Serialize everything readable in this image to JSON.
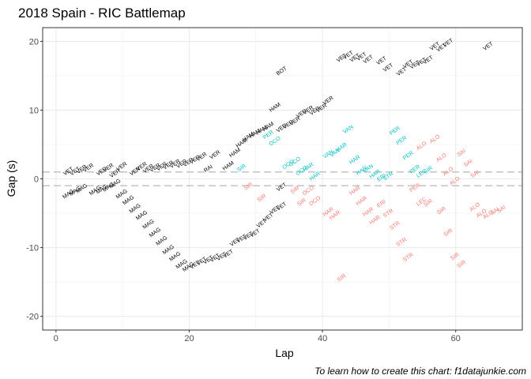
{
  "chart_data": {
    "type": "scatter",
    "title": "2018 Spain - RIC Battlemap",
    "xlabel": "Lap",
    "ylabel": "Gap (s)",
    "xlim": [
      -2,
      70
    ],
    "ylim": [
      -22,
      22
    ],
    "x_ticks": [
      0,
      20,
      40,
      60
    ],
    "y_ticks": [
      -20,
      -10,
      0,
      10,
      20
    ],
    "grid": true,
    "legend": "none",
    "reference_lines": [
      1,
      -1
    ],
    "colors": {
      "ahead": "#000000",
      "behind": "#f8766d",
      "lapped": "#00bfc4",
      "panel_border": "#333333",
      "grid": "#ebebeb",
      "ref": "#bebebe"
    },
    "caption": "To learn how to create this chart: f1datajunkie.com",
    "series": [
      {
        "name": "ahead",
        "points": [
          [
            2,
            0.9,
            "VET"
          ],
          [
            3,
            0.9,
            "VET"
          ],
          [
            4,
            1.2,
            "VER"
          ],
          [
            5,
            1.4,
            "VER"
          ],
          [
            7,
            0.9,
            "VER"
          ],
          [
            8,
            1.4,
            "VER"
          ],
          [
            9,
            0.6,
            "VER"
          ],
          [
            10,
            1.6,
            "VER"
          ],
          [
            12,
            0.9,
            "VER"
          ],
          [
            13,
            1.6,
            "VER"
          ],
          [
            14,
            1.3,
            "VER"
          ],
          [
            15,
            1.4,
            "VER"
          ],
          [
            16,
            1.6,
            "VER"
          ],
          [
            17,
            1.8,
            "VER"
          ],
          [
            18,
            2.0,
            "VER"
          ],
          [
            19,
            2.0,
            "VER"
          ],
          [
            20,
            2.2,
            "VER"
          ],
          [
            21,
            2.6,
            "VER"
          ],
          [
            22,
            3.0,
            "VER"
          ],
          [
            23,
            1.3,
            "RAI"
          ],
          [
            24,
            3.3,
            "VER"
          ],
          [
            26,
            1.7,
            "HAM"
          ],
          [
            27,
            3.6,
            "HAM"
          ],
          [
            28,
            5.0,
            "HAM"
          ],
          [
            29,
            5.9,
            "HAM"
          ],
          [
            30,
            6.4,
            "HAM"
          ],
          [
            31,
            6.9,
            "HAM"
          ],
          [
            32,
            7.4,
            "HAM"
          ],
          [
            33,
            10.2,
            "HAM"
          ],
          [
            34,
            7.2,
            "VER"
          ],
          [
            35,
            7.7,
            "VER"
          ],
          [
            36,
            8.2,
            "VER"
          ],
          [
            37,
            9.3,
            "VER"
          ],
          [
            38,
            9.8,
            "VER"
          ],
          [
            39,
            9.7,
            "VER"
          ],
          [
            40,
            10.1,
            "VER"
          ],
          [
            41,
            11.2,
            "VER"
          ],
          [
            34,
            15.5,
            "BOT"
          ],
          [
            43,
            17.4,
            "VET"
          ],
          [
            44,
            17.8,
            "VET"
          ],
          [
            45,
            17.4,
            "VET"
          ],
          [
            46,
            17.6,
            "VET"
          ],
          [
            47,
            17.2,
            "VET"
          ],
          [
            49,
            17.0,
            "VET"
          ],
          [
            50,
            16.0,
            "VET"
          ],
          [
            52,
            15.4,
            "VET"
          ],
          [
            53,
            16.5,
            "VET"
          ],
          [
            54,
            16.4,
            "VET"
          ],
          [
            55,
            16.8,
            "VET"
          ],
          [
            56,
            17.1,
            "VET"
          ],
          [
            57,
            19.1,
            "VET"
          ],
          [
            58,
            18.9,
            "VET"
          ],
          [
            59,
            19.6,
            "VET"
          ],
          [
            65,
            19.1,
            "VET"
          ],
          [
            34,
            -1.4,
            "VET"
          ],
          [
            2,
            -2.4,
            "MAG"
          ],
          [
            3,
            -2.0,
            "MAG"
          ],
          [
            4,
            -1.6,
            "MAG"
          ],
          [
            6,
            -1.9,
            "MAG"
          ],
          [
            7,
            -1.7,
            "MAG"
          ],
          [
            8,
            -1.4,
            "MAG"
          ],
          [
            9,
            -0.9,
            "MAG"
          ],
          [
            10,
            -2.4,
            "MAG"
          ],
          [
            11,
            -3.3,
            "MAG"
          ],
          [
            12,
            -4.5,
            "MAG"
          ],
          [
            13,
            -5.5,
            "MAG"
          ],
          [
            14,
            -6.8,
            "MAG"
          ],
          [
            15,
            -8.0,
            "MAG"
          ],
          [
            16,
            -9.2,
            "MAG"
          ],
          [
            17,
            -10.5,
            "MAG"
          ],
          [
            18,
            -11.5,
            "MAG"
          ],
          [
            19,
            -12.6,
            "MAG"
          ],
          [
            20,
            -13.0,
            "MAG"
          ],
          [
            21,
            -12.7,
            "VET"
          ],
          [
            22,
            -12.2,
            "VET"
          ],
          [
            23,
            -12.0,
            "VET"
          ],
          [
            24,
            -11.7,
            "VET"
          ],
          [
            25,
            -11.5,
            "VET"
          ],
          [
            26,
            -11.1,
            "VET"
          ],
          [
            27,
            -9.4,
            "VET"
          ],
          [
            28,
            -8.9,
            "VET"
          ],
          [
            29,
            -8.5,
            "VET"
          ],
          [
            30,
            -8.1,
            "VET"
          ],
          [
            31,
            -6.7,
            "VET"
          ],
          [
            32,
            -5.8,
            "VET"
          ],
          [
            33,
            -4.7,
            "VET"
          ],
          [
            34,
            -4.2,
            "VET"
          ]
        ]
      },
      {
        "name": "behind",
        "points": [
          [
            29,
            -1.3,
            "SIR"
          ],
          [
            31,
            -3.0,
            "SIR"
          ],
          [
            36,
            -1.8,
            "SIR"
          ],
          [
            37,
            -3.6,
            "SIR"
          ],
          [
            38,
            -1.9,
            "OCO"
          ],
          [
            39,
            -3.4,
            "OCO"
          ],
          [
            41,
            -5.0,
            "HAR"
          ],
          [
            42,
            -5.5,
            "HAR"
          ],
          [
            45,
            -1.9,
            "HAR"
          ],
          [
            46,
            -3.4,
            "HAR"
          ],
          [
            47,
            -5.0,
            "HAR"
          ],
          [
            48,
            -6.2,
            "HAR"
          ],
          [
            49,
            -3.8,
            "ERI"
          ],
          [
            50,
            -5.2,
            "STR"
          ],
          [
            51,
            -7.0,
            "STR"
          ],
          [
            52,
            -9.4,
            "STR"
          ],
          [
            53,
            -11.6,
            "STR"
          ],
          [
            54,
            -1.5,
            "PER"
          ],
          [
            55,
            -3.5,
            "LEC"
          ],
          [
            56,
            -3.7,
            "SIR"
          ],
          [
            58,
            -4.8,
            "SIR"
          ],
          [
            59,
            -8.0,
            "SIR"
          ],
          [
            60,
            -11.5,
            "SIR"
          ],
          [
            61,
            -12.6,
            "SIR"
          ],
          [
            63,
            -4.3,
            "ALO"
          ],
          [
            64,
            -5.2,
            "ALO"
          ],
          [
            65,
            -5.4,
            "ALO"
          ],
          [
            66,
            -4.9,
            "SAI"
          ],
          [
            67,
            -4.6,
            "SAI"
          ],
          [
            43,
            -14.6,
            "SIR"
          ],
          [
            55,
            4.6,
            "ALO"
          ],
          [
            57,
            5.6,
            "ALO"
          ],
          [
            58,
            2.9,
            "ALO"
          ],
          [
            59,
            0.9,
            "ALO"
          ],
          [
            60,
            -0.5,
            "ALO"
          ],
          [
            61,
            3.6,
            "SAI"
          ],
          [
            62,
            2.1,
            "SAI"
          ],
          [
            63,
            0.5,
            "SAI"
          ]
        ]
      },
      {
        "name": "lapped",
        "points": [
          [
            28,
            1.4,
            "SIR"
          ],
          [
            32,
            6.2,
            "PER"
          ],
          [
            33,
            5.3,
            "OCO"
          ],
          [
            35,
            1.9,
            "OCO"
          ],
          [
            36,
            2.3,
            "OCO"
          ],
          [
            37,
            1.0,
            "OCO"
          ],
          [
            38,
            1.5,
            "HAR"
          ],
          [
            39,
            0.2,
            "HAR"
          ],
          [
            41,
            3.4,
            "VAN"
          ],
          [
            42,
            3.6,
            "VAN"
          ],
          [
            43,
            4.4,
            "HAR"
          ],
          [
            44,
            7.0,
            "VAN"
          ],
          [
            45,
            2.6,
            "HAR"
          ],
          [
            46,
            1.0,
            "HAR"
          ],
          [
            47,
            1.3,
            "VAN"
          ],
          [
            48,
            0.5,
            "HAR"
          ],
          [
            49,
            0.0,
            "ERI"
          ],
          [
            50,
            0.2,
            "STR"
          ],
          [
            51,
            6.8,
            "PER"
          ],
          [
            52,
            5.4,
            "PER"
          ],
          [
            53,
            3.2,
            "PER"
          ],
          [
            54,
            1.2,
            "PER"
          ],
          [
            55,
            0.6,
            "LEC"
          ],
          [
            56,
            1.1,
            "SIR"
          ]
        ]
      }
    ]
  }
}
